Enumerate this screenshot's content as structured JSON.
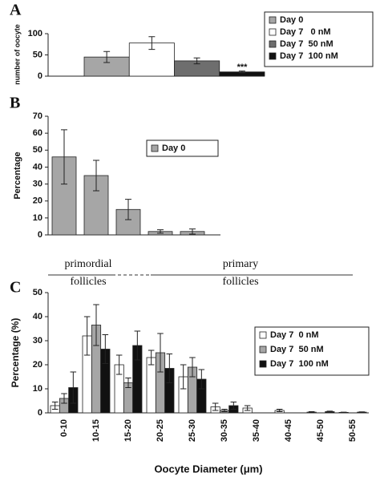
{
  "chart_data": [
    {
      "type": "bar",
      "panel": "A",
      "ylabel": "number of oocyte",
      "ylim": [
        0,
        100
      ],
      "yticks": [
        0,
        50,
        100
      ],
      "series": [
        {
          "name": "Day 0",
          "color": "#a6a6a6",
          "values": [
            45
          ],
          "errors": [
            13
          ]
        },
        {
          "name": "Day 7   0 nM",
          "color": "#ffffff",
          "values": [
            78
          ],
          "errors": [
            15
          ]
        },
        {
          "name": "Day 7  50 nM",
          "color": "#6e6e6e",
          "values": [
            36
          ],
          "errors": [
            7
          ]
        },
        {
          "name": "Day 7  100 nM",
          "color": "#111111",
          "values": [
            10
          ],
          "errors": [
            2
          ]
        }
      ],
      "annotations": [
        "***"
      ]
    },
    {
      "type": "bar",
      "panel": "B",
      "ylabel": "Percentage",
      "ylim": [
        0,
        70
      ],
      "yticks": [
        0,
        10,
        20,
        30,
        40,
        50,
        60,
        70
      ],
      "series": [
        {
          "name": "Day 0",
          "color": "#a6a6a6",
          "values": [
            46,
            35,
            15,
            2,
            2
          ],
          "errors": [
            16,
            9,
            6,
            1,
            1.5
          ]
        }
      ]
    },
    {
      "type": "bar",
      "panel": "C",
      "ylabel": "Percentage (%)",
      "xlabel": "Oocyte Diameter (μm)",
      "ylim": [
        0,
        50
      ],
      "yticks": [
        0,
        10,
        20,
        30,
        40,
        50
      ],
      "categories": [
        "0-10",
        "10-15",
        "15-20",
        "20-25",
        "25-30",
        "30-35",
        "35-40",
        "40-45",
        "45-50",
        "50-55"
      ],
      "series": [
        {
          "name": "Day 7  0 nM",
          "color": "#ffffff",
          "values": [
            3,
            32,
            20,
            23,
            15,
            2.5,
            2,
            1,
            0.3,
            0.2
          ],
          "errors": [
            1.5,
            8,
            4,
            3,
            5,
            1.5,
            1,
            0.5,
            0.2,
            0.1
          ]
        },
        {
          "name": "Day 7  50 nM",
          "color": "#a6a6a6",
          "values": [
            6,
            36.5,
            12.5,
            25,
            19,
            1,
            0,
            0,
            0,
            0
          ],
          "errors": [
            2,
            8.5,
            2,
            8,
            4,
            0.5,
            0,
            0,
            0,
            0
          ]
        },
        {
          "name": "Day 7  100 nM",
          "color": "#111111",
          "values": [
            10.5,
            26.5,
            28,
            18.5,
            14,
            3,
            0,
            0,
            0.5,
            0.3
          ],
          "errors": [
            6.5,
            6,
            6,
            6,
            4,
            1.5,
            0,
            0,
            0.2,
            0.1
          ]
        }
      ],
      "annotations": [
        "primordial",
        "follicles",
        "primary",
        "follicles"
      ]
    }
  ]
}
